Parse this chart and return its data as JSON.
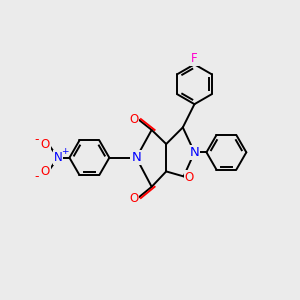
{
  "bg_color": "#ebebeb",
  "bond_color": "#000000",
  "bond_width": 1.4,
  "atom_colors": {
    "N": "#0000ff",
    "O": "#ff0000",
    "F": "#ff00cc",
    "C": "#000000"
  },
  "font_size": 8.5,
  "xlim": [
    -2.8,
    2.8
  ],
  "ylim": [
    -2.2,
    2.4
  ]
}
